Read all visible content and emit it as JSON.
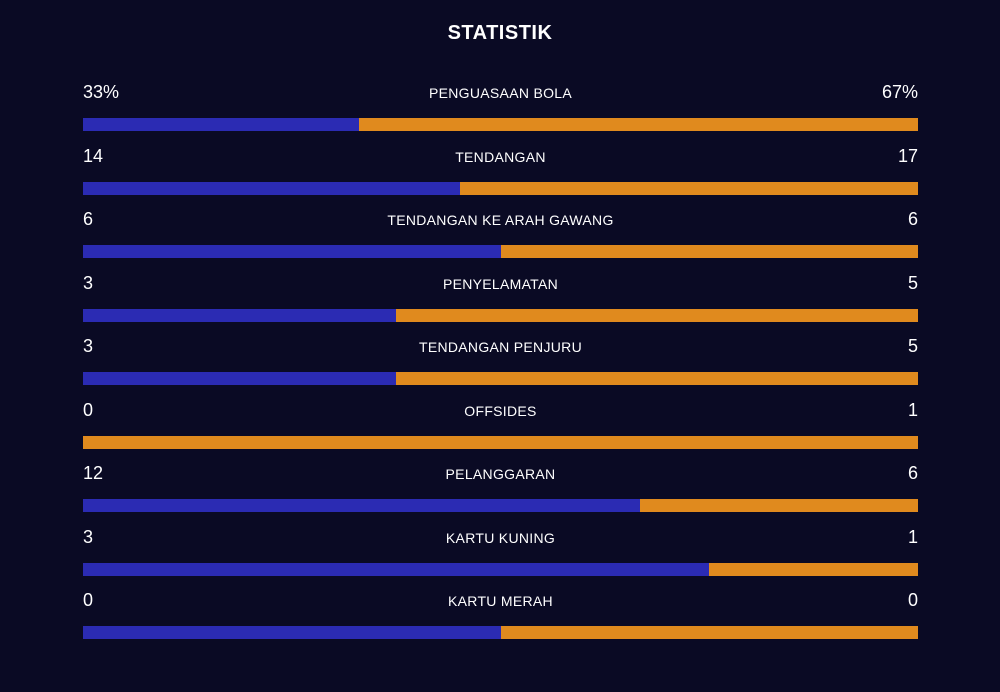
{
  "title": "STATISTIK",
  "colors": {
    "background": "#0a0a24",
    "home": "#2b2bb3",
    "away": "#e08a1e",
    "text": "#ffffff"
  },
  "chart_data": {
    "type": "bar",
    "title": "STATISTIK",
    "layout": "stacked-horizontal-comparison",
    "series": [
      {
        "values": [
          33,
          14,
          6,
          3,
          3,
          0,
          12,
          3,
          0
        ]
      },
      {
        "values": [
          67,
          17,
          6,
          5,
          5,
          1,
          6,
          1,
          0
        ]
      }
    ],
    "stats": [
      {
        "label": "PENGUASAAN BOLA",
        "left": "33%",
        "right": "67%",
        "left_value": 33,
        "right_value": 67
      },
      {
        "label": "TENDANGAN",
        "left": "14",
        "right": "17",
        "left_value": 14,
        "right_value": 17
      },
      {
        "label": "TENDANGAN KE ARAH GAWANG",
        "left": "6",
        "right": "6",
        "left_value": 6,
        "right_value": 6
      },
      {
        "label": "PENYELAMATAN",
        "left": "3",
        "right": "5",
        "left_value": 3,
        "right_value": 5
      },
      {
        "label": "TENDANGAN PENJURU",
        "left": "3",
        "right": "5",
        "left_value": 3,
        "right_value": 5
      },
      {
        "label": "OFFSIDES",
        "left": "0",
        "right": "1",
        "left_value": 0,
        "right_value": 1
      },
      {
        "label": "PELANGGARAN",
        "left": "12",
        "right": "6",
        "left_value": 12,
        "right_value": 6
      },
      {
        "label": "KARTU KUNING",
        "left": "3",
        "right": "1",
        "left_value": 3,
        "right_value": 1
      },
      {
        "label": "KARTU MERAH",
        "left": "0",
        "right": "0",
        "left_value": 0,
        "right_value": 0
      }
    ]
  }
}
